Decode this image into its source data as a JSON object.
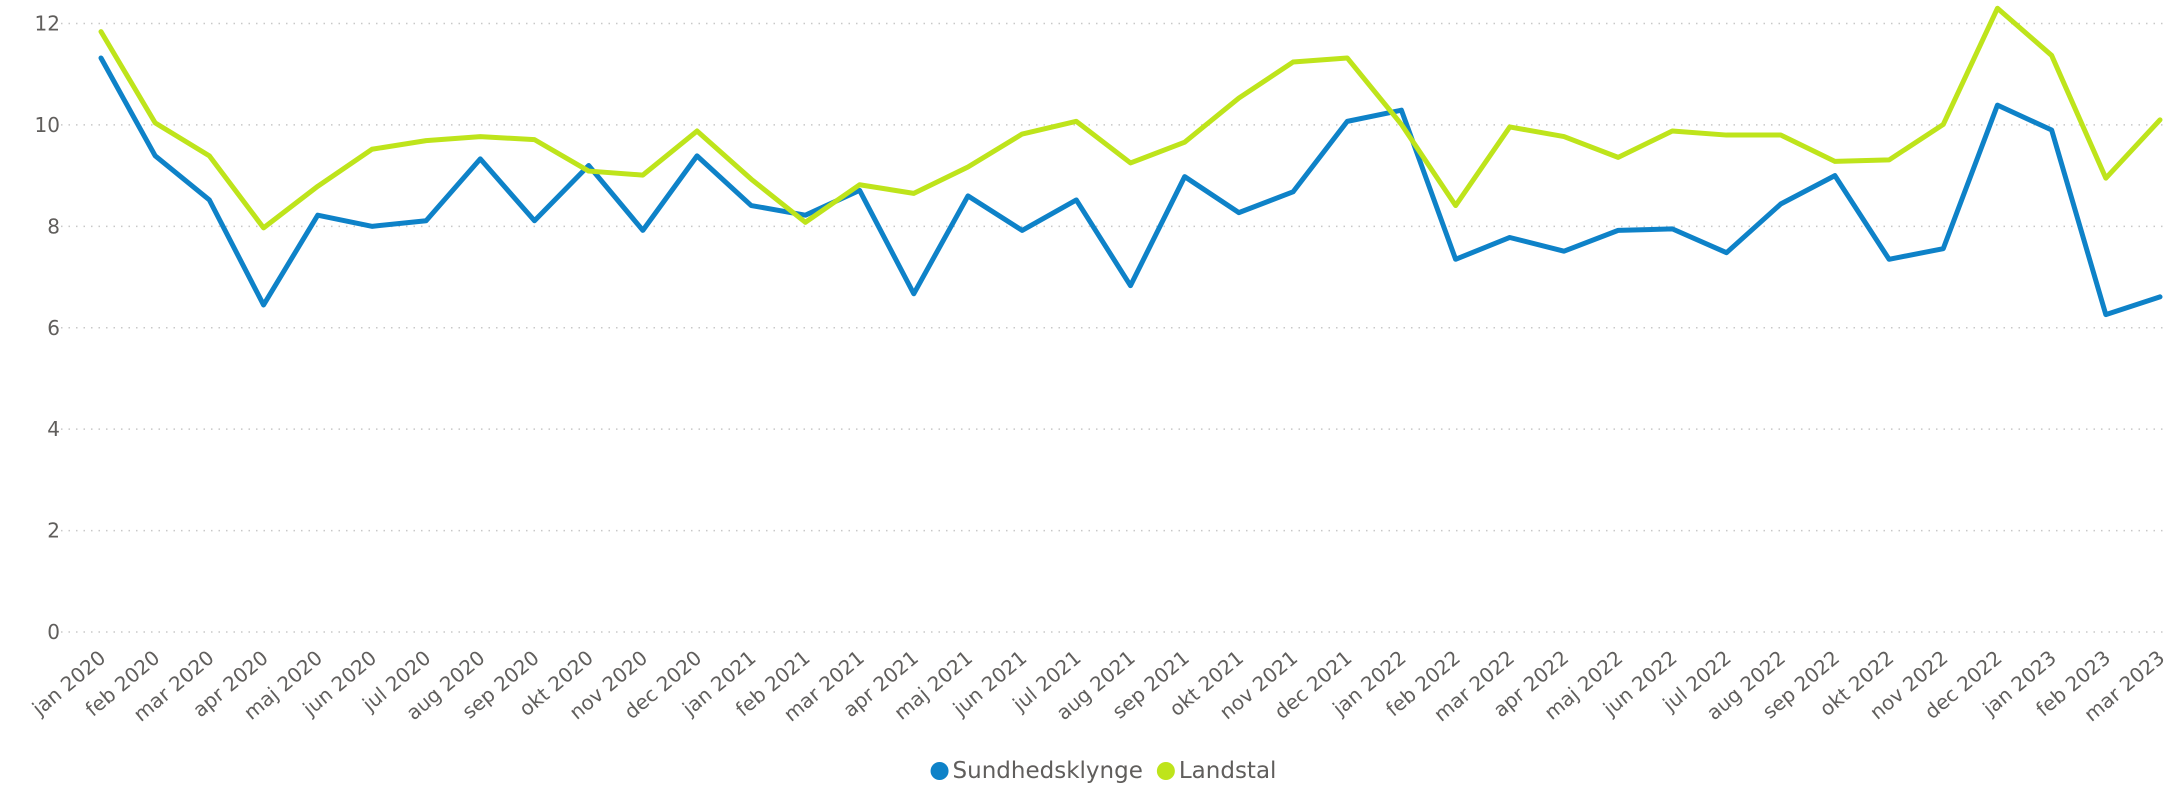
{
  "chart_data": {
    "type": "line",
    "categories": [
      "jan 2020",
      "feb 2020",
      "mar 2020",
      "apr 2020",
      "maj 2020",
      "jun 2020",
      "jul 2020",
      "aug 2020",
      "sep 2020",
      "okt 2020",
      "nov 2020",
      "dec 2020",
      "jan 2021",
      "feb 2021",
      "mar 2021",
      "apr 2021",
      "maj 2021",
      "jun 2021",
      "jul 2021",
      "aug 2021",
      "sep 2021",
      "okt 2021",
      "nov 2021",
      "dec 2021",
      "jan 2022",
      "feb 2022",
      "mar 2022",
      "apr 2022",
      "maj 2022",
      "jun 2022",
      "jul 2022",
      "aug 2022",
      "sep 2022",
      "okt 2022",
      "nov 2022",
      "dec 2022",
      "jan 2023",
      "feb 2023",
      "mar 2023"
    ],
    "series": [
      {
        "name": "Sundhedsklynge",
        "color": "#0e82c8",
        "values": [
          11.32,
          9.39,
          8.52,
          6.45,
          8.22,
          8.0,
          8.11,
          9.33,
          8.11,
          9.2,
          7.92,
          9.39,
          8.41,
          8.22,
          8.71,
          6.67,
          8.6,
          7.92,
          8.52,
          6.83,
          8.98,
          8.27,
          8.68,
          10.07,
          10.29,
          7.35,
          7.78,
          7.51,
          7.92,
          7.95,
          7.48,
          8.44,
          9.0,
          7.35,
          7.56,
          10.39,
          9.9,
          6.26,
          6.61
        ]
      },
      {
        "name": "Landstal",
        "color": "#bee41b",
        "values": [
          11.84,
          10.04,
          9.39,
          7.97,
          8.79,
          9.52,
          9.69,
          9.77,
          9.71,
          9.09,
          9.01,
          9.88,
          8.93,
          8.08,
          8.82,
          8.65,
          9.17,
          9.82,
          10.07,
          9.25,
          9.66,
          10.53,
          11.24,
          11.32,
          10.01,
          8.41,
          9.96,
          9.77,
          9.36,
          9.88,
          9.8,
          9.8,
          9.28,
          9.31,
          10.01,
          12.3,
          11.37,
          8.95,
          10.1
        ]
      }
    ],
    "ylim": [
      0,
      12.45
    ],
    "yticks": [
      0,
      2,
      4,
      6,
      8,
      10,
      12
    ],
    "grid": true,
    "legend": "bottom"
  }
}
